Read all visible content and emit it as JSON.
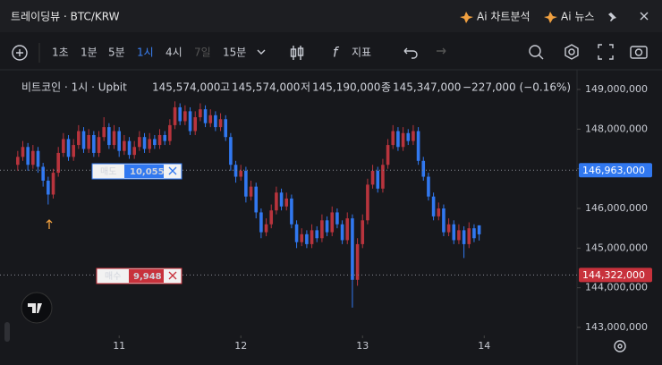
{
  "header": {
    "title": "트레이딩뷰 · BTC/KRW",
    "ai_chart": "Ai 차트분석",
    "ai_news": "Ai 뉴스"
  },
  "toolbar": {
    "intervals": [
      "1초",
      "1분",
      "5분",
      "1시",
      "4시",
      "7일",
      "15분"
    ],
    "indicators": "지표"
  },
  "legend": {
    "symbol": "비트코인 · 1시 · Upbit",
    "open": "145,574,000",
    "high_label": "고",
    "high": "145,574,000",
    "low_label": "저",
    "low": "145,190,000",
    "close_label": "종",
    "close": "145,347,000",
    "change": "−227,000 (−0.16%)"
  },
  "orders": {
    "sell_label": "매도",
    "sell_qty": "10,055",
    "buy_label": "매수",
    "buy_qty": "9,948"
  },
  "chart_data": {
    "type": "candlestick",
    "up_color": "#b8343d",
    "down_color": "#3178f0",
    "x": [
      -20,
      -19,
      -18,
      -17,
      -16,
      -15,
      -14,
      -13,
      -12,
      -11,
      -10,
      -9,
      -8,
      -7,
      -6,
      -5,
      -4,
      -3,
      -2,
      -1,
      0,
      1,
      2,
      3,
      4,
      5,
      6,
      7,
      8,
      9,
      10,
      11,
      12,
      13,
      14,
      15,
      16,
      17,
      18,
      19,
      20,
      21,
      22,
      23,
      24,
      25,
      26,
      27,
      28,
      29,
      30,
      31,
      32,
      33,
      34,
      35,
      36,
      37,
      38,
      39,
      40,
      41,
      42,
      43,
      44,
      45,
      46,
      47,
      48,
      49,
      50,
      51,
      52,
      53,
      54,
      55,
      56,
      57,
      58,
      59,
      60,
      61,
      62,
      63,
      64,
      65,
      66,
      67,
      68,
      69,
      70,
      71
    ],
    "open": [
      147100000,
      147300000,
      147550000,
      147100000,
      147450000,
      147050000,
      146700000,
      146350000,
      146900000,
      147400000,
      147750000,
      147300000,
      147600000,
      147950000,
      147500000,
      147850000,
      147400000,
      147800000,
      148050000,
      147600000,
      147950000,
      147450000,
      147700000,
      147350000,
      147550000,
      147800000,
      147500000,
      147750000,
      147600000,
      147850000,
      147700000,
      148100000,
      148550000,
      148200000,
      148450000,
      147950000,
      148300000,
      148500000,
      148150000,
      148350000,
      148050000,
      148250000,
      147800000,
      147100000,
      146800000,
      146950000,
      146300000,
      146550000,
      145900000,
      145400000,
      145600000,
      145950000,
      146400000,
      146050000,
      146250000,
      145600000,
      145150000,
      145350000,
      145100000,
      145450000,
      145250000,
      145700000,
      145400000,
      145900000,
      145600000,
      145200000,
      145750000,
      144200000,
      145100000,
      145700000,
      146600000,
      146950000,
      146500000,
      147100000,
      147600000,
      147950000,
      147550000,
      147900000,
      147700000,
      147950000,
      147200000,
      146800000,
      146300000,
      145800000,
      146000000,
      145400000,
      145600000,
      145200000,
      145450000,
      145100000,
      145500000,
      145574000
    ],
    "high": [
      147450000,
      147700000,
      147650000,
      147600000,
      147550000,
      147150000,
      146800000,
      147000000,
      147550000,
      147900000,
      147850000,
      147750000,
      148100000,
      148050000,
      148000000,
      147950000,
      147950000,
      148300000,
      148150000,
      148100000,
      148050000,
      147850000,
      147800000,
      147700000,
      147950000,
      147900000,
      147900000,
      147850000,
      148000000,
      147950000,
      148250000,
      148700000,
      148650000,
      148600000,
      148550000,
      148450000,
      148650000,
      148600000,
      148500000,
      148450000,
      148400000,
      148350000,
      147900000,
      147200000,
      147100000,
      147050000,
      146700000,
      146650000,
      146000000,
      145750000,
      146100000,
      146550000,
      146500000,
      146400000,
      146350000,
      145700000,
      145500000,
      145450000,
      145600000,
      145550000,
      145850000,
      145800000,
      146050000,
      146000000,
      145700000,
      145900000,
      145850000,
      145250000,
      145850000,
      146750000,
      147100000,
      147050000,
      147250000,
      147750000,
      148100000,
      148050000,
      148050000,
      148000000,
      148100000,
      148050000,
      147300000,
      146900000,
      146400000,
      146150000,
      146100000,
      145750000,
      145700000,
      145600000,
      145550000,
      145650000,
      145600000,
      145574000
    ],
    "low": [
      146950000,
      147200000,
      146950000,
      147000000,
      146900000,
      146550000,
      146100000,
      146250000,
      146800000,
      147300000,
      147200000,
      147200000,
      147500000,
      147400000,
      147400000,
      147300000,
      147300000,
      147700000,
      147500000,
      147500000,
      147300000,
      147350000,
      147250000,
      147250000,
      147450000,
      147400000,
      147400000,
      147500000,
      147500000,
      147600000,
      147600000,
      148000000,
      148100000,
      148100000,
      147850000,
      147850000,
      148200000,
      148050000,
      148050000,
      147950000,
      147950000,
      147700000,
      146950000,
      146650000,
      146700000,
      146150000,
      146200000,
      145750000,
      145250000,
      145300000,
      145500000,
      145850000,
      145950000,
      145950000,
      145500000,
      145000000,
      145050000,
      145000000,
      145000000,
      145150000,
      145150000,
      145300000,
      145300000,
      145500000,
      145100000,
      145100000,
      143500000,
      144050000,
      145000000,
      145600000,
      146500000,
      146400000,
      146400000,
      147000000,
      147500000,
      147450000,
      147450000,
      147600000,
      147600000,
      147100000,
      146700000,
      146200000,
      145700000,
      145700000,
      145300000,
      145300000,
      145100000,
      145100000,
      144750000,
      145000000,
      145150000,
      145190000
    ],
    "close": [
      147300000,
      147550000,
      147100000,
      147450000,
      147050000,
      146700000,
      146350000,
      146900000,
      147400000,
      147750000,
      147300000,
      147600000,
      147950000,
      147500000,
      147850000,
      147400000,
      147800000,
      148050000,
      147600000,
      147950000,
      147450000,
      147700000,
      147350000,
      147550000,
      147800000,
      147500000,
      147750000,
      147600000,
      147850000,
      147700000,
      148100000,
      148550000,
      148200000,
      148450000,
      147950000,
      148300000,
      148500000,
      148150000,
      148350000,
      148050000,
      148250000,
      147800000,
      147100000,
      146800000,
      146950000,
      146300000,
      146550000,
      145900000,
      145400000,
      145600000,
      145950000,
      146400000,
      146050000,
      146250000,
      145600000,
      145150000,
      145350000,
      145100000,
      145450000,
      145250000,
      145700000,
      145400000,
      145900000,
      145600000,
      145200000,
      145750000,
      144200000,
      145100000,
      145700000,
      146600000,
      146950000,
      146500000,
      147100000,
      147600000,
      147950000,
      147550000,
      147900000,
      147700000,
      147950000,
      147200000,
      146800000,
      146300000,
      145800000,
      146000000,
      145400000,
      145600000,
      145200000,
      145450000,
      145100000,
      145500000,
      145250000,
      145347000
    ],
    "xlim": [
      -23.5,
      90.3
    ],
    "xticks": [
      {
        "value": 0,
        "label": "11"
      },
      {
        "value": 24,
        "label": "12"
      },
      {
        "value": 48,
        "label": "13"
      },
      {
        "value": 72,
        "label": "14"
      }
    ],
    "ylim": [
      142797000,
      149451000
    ],
    "yticks": [
      {
        "value": 143000000,
        "label": "143,000,000"
      },
      {
        "value": 144000000,
        "label": "144,000,000"
      },
      {
        "value": 145000000,
        "label": "145,000,000"
      },
      {
        "value": 146000000,
        "label": "146,000,000"
      },
      {
        "value": 147000000,
        "label": "147,000,000"
      },
      {
        "value": 148000000,
        "label": "148,000,000"
      },
      {
        "value": 149000000,
        "label": "149,000,000"
      }
    ],
    "price_lines": [
      {
        "value": 146963000,
        "label": "146,963,000",
        "color": "#3178f0"
      },
      {
        "value": 144322000,
        "label": "144,322,000",
        "color": "#c8323c"
      }
    ]
  }
}
